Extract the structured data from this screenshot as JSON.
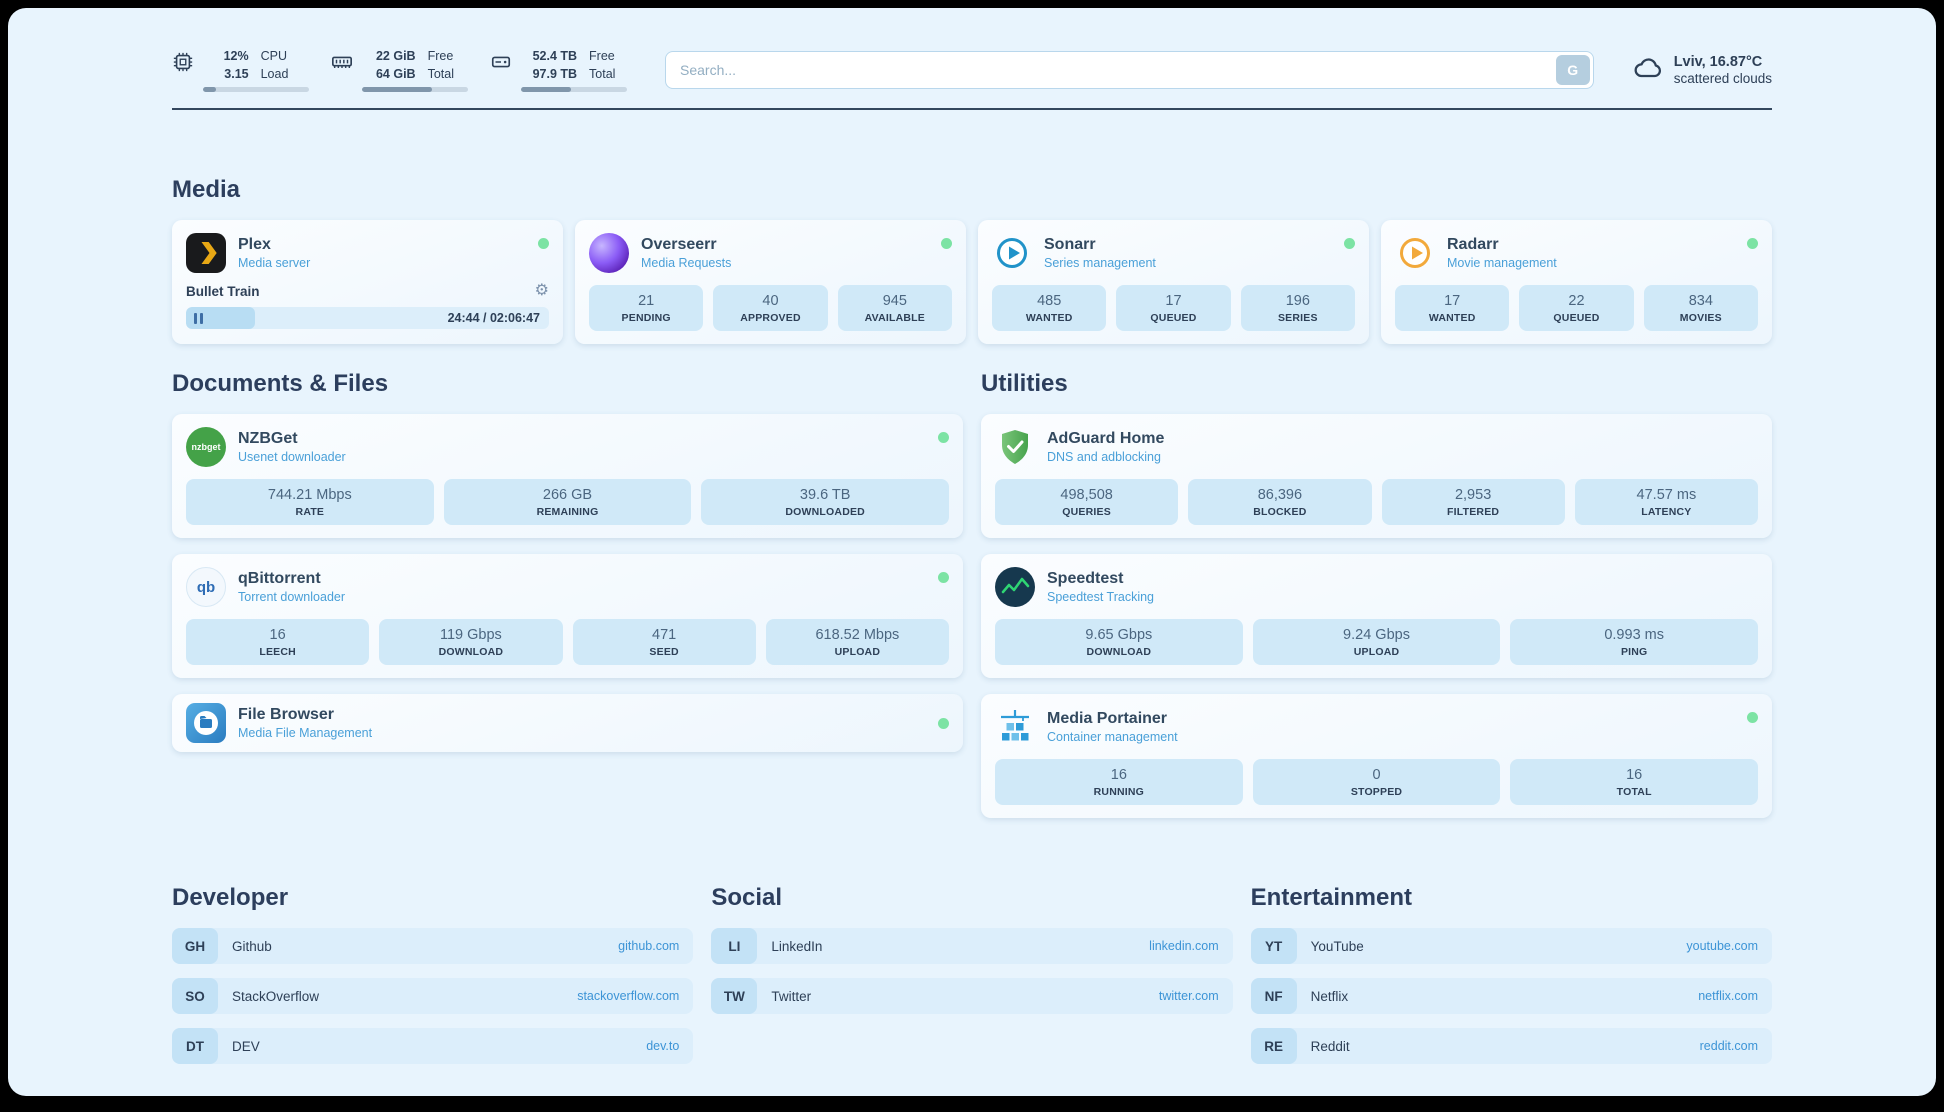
{
  "topbar": {
    "cpu": {
      "value1": "12%",
      "label1": "CPU",
      "value2": "3.15",
      "label2": "Load",
      "progress": 12
    },
    "ram": {
      "value1": "22 GiB",
      "label1": "Free",
      "value2": "64 GiB",
      "label2": "Total",
      "progress": 66
    },
    "disk": {
      "value1": "52.4 TB",
      "label1": "Free",
      "value2": "97.9 TB",
      "label2": "Total",
      "progress": 47
    },
    "search": {
      "placeholder": "Search...",
      "button_label": "G"
    },
    "weather": {
      "location": "Lviv, 16.87°C",
      "condition": "scattered clouds"
    }
  },
  "media": {
    "title": "Media",
    "plex": {
      "name": "Plex",
      "subtitle": "Media server",
      "now_playing": "Bullet Train",
      "time": "24:44 / 02:06:47",
      "progress": 19
    },
    "overseerr": {
      "name": "Overseerr",
      "subtitle": "Media Requests",
      "stats": [
        {
          "value": "21",
          "label": "PENDING"
        },
        {
          "value": "40",
          "label": "APPROVED"
        },
        {
          "value": "945",
          "label": "AVAILABLE"
        }
      ]
    },
    "sonarr": {
      "name": "Sonarr",
      "subtitle": "Series management",
      "stats": [
        {
          "value": "485",
          "label": "WANTED"
        },
        {
          "value": "17",
          "label": "QUEUED"
        },
        {
          "value": "196",
          "label": "SERIES"
        }
      ]
    },
    "radarr": {
      "name": "Radarr",
      "subtitle": "Movie management",
      "stats": [
        {
          "value": "17",
          "label": "WANTED"
        },
        {
          "value": "22",
          "label": "QUEUED"
        },
        {
          "value": "834",
          "label": "MOVIES"
        }
      ]
    }
  },
  "documents": {
    "title": "Documents & Files",
    "nzbget": {
      "name": "NZBGet",
      "subtitle": "Usenet downloader",
      "icon_text": "nzbget",
      "stats": [
        {
          "value": "744.21 Mbps",
          "label": "RATE"
        },
        {
          "value": "266 GB",
          "label": "REMAINING"
        },
        {
          "value": "39.6 TB",
          "label": "DOWNLOADED"
        }
      ]
    },
    "qbittorrent": {
      "name": "qBittorrent",
      "subtitle": "Torrent downloader",
      "icon_text": "qb",
      "stats": [
        {
          "value": "16",
          "label": "LEECH"
        },
        {
          "value": "119 Gbps",
          "label": "DOWNLOAD"
        },
        {
          "value": "471",
          "label": "SEED"
        },
        {
          "value": "618.52 Mbps",
          "label": "UPLOAD"
        }
      ]
    },
    "filebrowser": {
      "name": "File Browser",
      "subtitle": "Media File Management"
    }
  },
  "utilities": {
    "title": "Utilities",
    "adguard": {
      "name": "AdGuard Home",
      "subtitle": "DNS and adblocking",
      "stats": [
        {
          "value": "498,508",
          "label": "QUERIES"
        },
        {
          "value": "86,396",
          "label": "BLOCKED"
        },
        {
          "value": "2,953",
          "label": "FILTERED"
        },
        {
          "value": "47.57 ms",
          "label": "LATENCY"
        }
      ]
    },
    "speedtest": {
      "name": "Speedtest",
      "subtitle": "Speedtest Tracking",
      "stats": [
        {
          "value": "9.65 Gbps",
          "label": "DOWNLOAD"
        },
        {
          "value": "9.24 Gbps",
          "label": "UPLOAD"
        },
        {
          "value": "0.993 ms",
          "label": "PING"
        }
      ]
    },
    "portainer": {
      "name": "Media Portainer",
      "subtitle": "Container management",
      "stats": [
        {
          "value": "16",
          "label": "RUNNING"
        },
        {
          "value": "0",
          "label": "STOPPED"
        },
        {
          "value": "16",
          "label": "TOTAL"
        }
      ]
    }
  },
  "bookmarks": {
    "developer": {
      "title": "Developer",
      "items": [
        {
          "abbr": "GH",
          "name": "Github",
          "url": "github.com"
        },
        {
          "abbr": "SO",
          "name": "StackOverflow",
          "url": "stackoverflow.com"
        },
        {
          "abbr": "DT",
          "name": "DEV",
          "url": "dev.to"
        }
      ]
    },
    "social": {
      "title": "Social",
      "items": [
        {
          "abbr": "LI",
          "name": "LinkedIn",
          "url": "linkedin.com"
        },
        {
          "abbr": "TW",
          "name": "Twitter",
          "url": "twitter.com"
        }
      ]
    },
    "entertainment": {
      "title": "Entertainment",
      "items": [
        {
          "abbr": "YT",
          "name": "YouTube",
          "url": "youtube.com"
        },
        {
          "abbr": "NF",
          "name": "Netflix",
          "url": "netflix.com"
        },
        {
          "abbr": "RE",
          "name": "Reddit",
          "url": "reddit.com"
        }
      ]
    }
  },
  "colors": {
    "accent_blue": "#4aa0d8",
    "link_blue": "#3d94d6",
    "status_green": "#7ce3a4",
    "page_bg": "#e8f4fd"
  }
}
